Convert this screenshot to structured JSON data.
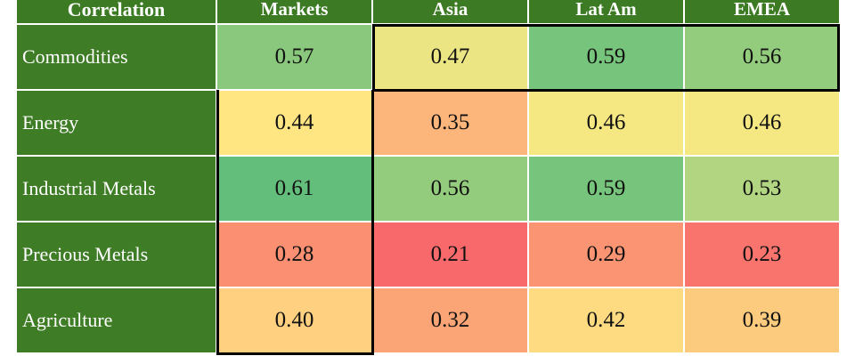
{
  "table": {
    "header": [
      "Correlation",
      "Markets",
      "Asia",
      "Lat Am",
      "EMEA"
    ],
    "rows": [
      [
        "Commodities",
        "0.57",
        "0.47",
        "0.59",
        "0.56"
      ],
      [
        "Energy",
        "0.44",
        "0.35",
        "0.46",
        "0.46"
      ],
      [
        "Industrial Metals",
        "0.61",
        "0.56",
        "0.59",
        "0.53"
      ],
      [
        "Precious Metals",
        "0.28",
        "0.21",
        "0.29",
        "0.23"
      ],
      [
        "Agriculture",
        "0.40",
        "0.32",
        "0.42",
        "0.39"
      ]
    ]
  }
}
